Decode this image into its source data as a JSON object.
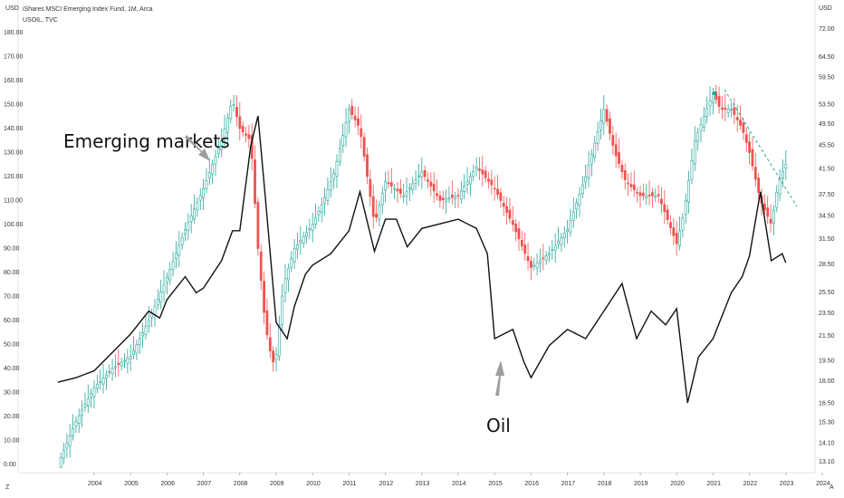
{
  "header": {
    "main_title": "iShares MSCI Emerging Index Fund, 1M, Arca",
    "sub_title": "USOIL, TVC",
    "left_unit": "USD",
    "right_unit": "USD",
    "corner_left": "Z",
    "corner_right": "A"
  },
  "colors": {
    "up": "#26a69a",
    "down": "#ef5350",
    "oil": "#111111",
    "arrow": "#9e9e9e",
    "trend": "#26a69a",
    "last_marker": "#26a69a"
  },
  "annotations": {
    "emerging": "Emerging markets",
    "oil": "Oil"
  },
  "chart_data": {
    "type": "line",
    "x_ticks": [
      "2004",
      "2005",
      "2006",
      "2007",
      "2008",
      "2009",
      "2010",
      "2011",
      "2012",
      "2013",
      "2014",
      "2015",
      "2016",
      "2017",
      "2018",
      "2019",
      "2020",
      "2021",
      "2022",
      "2023",
      "2024"
    ],
    "left_axis": {
      "unit": "USD",
      "ticks": [
        "0.00",
        "10.00",
        "20.00",
        "30.00",
        "40.00",
        "50.00",
        "60.00",
        "70.00",
        "80.00",
        "90.00",
        "100.00",
        "110.00",
        "120.00",
        "130.00",
        "140.00",
        "150.00",
        "160.00",
        "170.00",
        "180.00"
      ],
      "ylim": [
        0,
        180
      ]
    },
    "right_axis": {
      "unit": "USD",
      "scale": "log",
      "ticks": [
        "13.10",
        "14.10",
        "15.30",
        "16.50",
        "18.00",
        "19.50",
        "21.50",
        "23.50",
        "25.50",
        "28.50",
        "31.50",
        "34.50",
        "37.50",
        "41.50",
        "45.50",
        "49.50",
        "53.50",
        "59.50",
        "64.50",
        "72.00"
      ]
    },
    "series": [
      {
        "name": "iShares MSCI Emerging Index Fund, 1M, Arca",
        "style": "candlestick",
        "x": [
          2003.0,
          2003.5,
          2004.0,
          2004.5,
          2005.0,
          2005.5,
          2006.0,
          2006.5,
          2007.0,
          2007.5,
          2007.8,
          2008.0,
          2008.3,
          2008.5,
          2008.7,
          2008.9,
          2009.0,
          2009.2,
          2009.5,
          2010.0,
          2010.3,
          2010.6,
          2011.0,
          2011.3,
          2011.7,
          2012.0,
          2012.5,
          2013.0,
          2013.5,
          2014.0,
          2014.5,
          2015.0,
          2015.5,
          2016.0,
          2016.5,
          2017.0,
          2017.5,
          2018.0,
          2018.3,
          2018.6,
          2019.0,
          2019.5,
          2020.0,
          2020.2,
          2020.5,
          2021.0,
          2021.2,
          2021.5,
          2021.8,
          2022.0,
          2022.3,
          2022.6,
          2022.8,
          2023.0
        ],
        "values": [
          0,
          18,
          32,
          40,
          45,
          60,
          78,
          98,
          115,
          135,
          152,
          140,
          135,
          90,
          58,
          42,
          46,
          75,
          90,
          100,
          110,
          122,
          148,
          140,
          100,
          118,
          112,
          122,
          110,
          112,
          124,
          115,
          100,
          82,
          88,
          98,
          120,
          148,
          130,
          118,
          112,
          112,
          92,
          105,
          135,
          155,
          148,
          148,
          140,
          130,
          110,
          100,
          118,
          125
        ]
      },
      {
        "name": "USOIL, TVC",
        "style": "line",
        "x": [
          2003.0,
          2003.5,
          2004.0,
          2004.5,
          2005.0,
          2005.5,
          2005.8,
          2006.0,
          2006.5,
          2006.8,
          2007.0,
          2007.5,
          2007.8,
          2008.0,
          2008.3,
          2008.5,
          2008.7,
          2009.0,
          2009.3,
          2009.5,
          2009.8,
          2010.0,
          2010.5,
          2011.0,
          2011.3,
          2011.7,
          2012.0,
          2012.3,
          2012.6,
          2013.0,
          2013.5,
          2014.0,
          2014.5,
          2014.8,
          2015.0,
          2015.5,
          2015.8,
          2016.0,
          2016.5,
          2017.0,
          2017.5,
          2018.0,
          2018.5,
          2018.9,
          2019.3,
          2019.7,
          2020.0,
          2020.3,
          2020.6,
          2021.0,
          2021.5,
          2021.8,
          2022.0,
          2022.3,
          2022.6,
          2022.9,
          2023.0
        ],
        "values": [
          29,
          31,
          34,
          42,
          50,
          60,
          57,
          65,
          75,
          68,
          70,
          82,
          95,
          95,
          132,
          145,
          110,
          55,
          48,
          62,
          76,
          80,
          85,
          95,
          112,
          86,
          100,
          100,
          88,
          96,
          98,
          100,
          96,
          85,
          48,
          52,
          38,
          31,
          45,
          52,
          48,
          60,
          72,
          48,
          60,
          54,
          61,
          20,
          40,
          48,
          68,
          75,
          84,
          112,
          82,
          85,
          81
        ]
      }
    ],
    "annotations": [
      "Emerging markets",
      "Oil"
    ]
  }
}
